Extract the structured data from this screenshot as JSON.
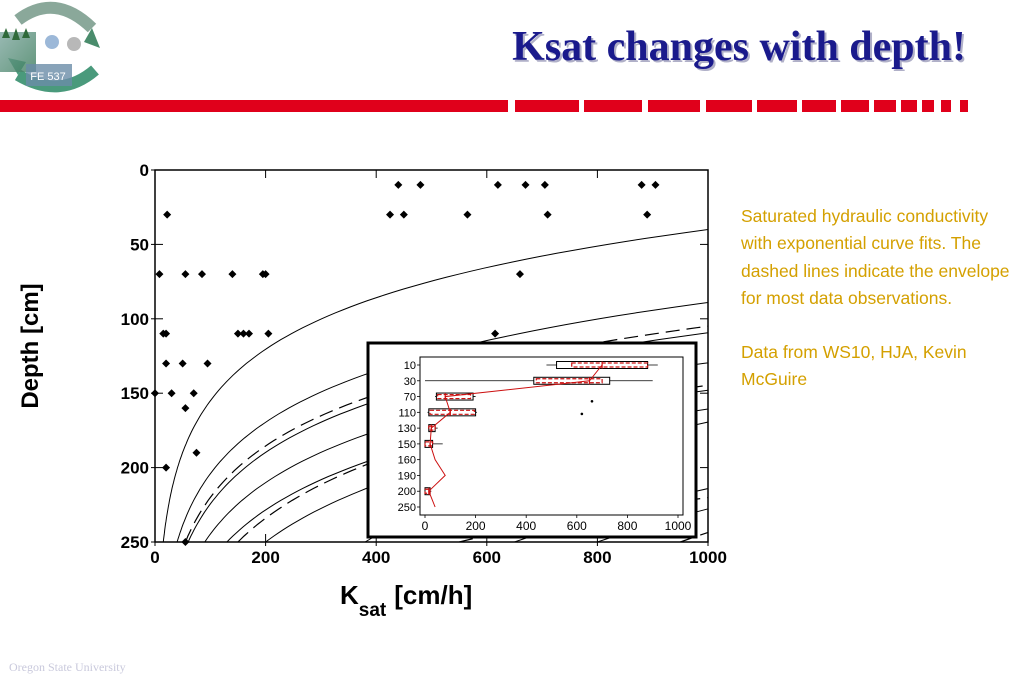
{
  "logo": {
    "icon": "ws-logo-icon",
    "badge_text": "FE 537"
  },
  "slide": {
    "title": "Ksat changes with depth!",
    "footer": "Oregon State University",
    "accent_title": "#1a1a8c",
    "accent_bar": "#e0001b",
    "accent_text": "#d4a000"
  },
  "description": {
    "paragraph1": "Saturated hydraulic conductivity with exponential curve fits.  The dashed lines indicate the envelope for most data observations.",
    "paragraph2": "Data from WS10, HJA, Kevin McGuire"
  },
  "chart_data": [
    {
      "type": "scatter",
      "xlabel_main": "K",
      "xlabel_sub": "sat",
      "xlabel_units": "[cm/h]",
      "ylabel": "Depth [cm]",
      "xlim": [
        0,
        1000
      ],
      "ylim": [
        250,
        0
      ],
      "x_ticks": [
        "0",
        "200",
        "400",
        "600",
        "800",
        "1000"
      ],
      "y_ticks": [
        "0",
        "50",
        "100",
        "150",
        "200",
        "250"
      ],
      "points": [
        [
          22,
          30
        ],
        [
          8,
          70
        ],
        [
          55,
          70
        ],
        [
          85,
          70
        ],
        [
          140,
          70
        ],
        [
          195,
          70
        ],
        [
          200,
          70
        ],
        [
          15,
          110
        ],
        [
          20,
          110
        ],
        [
          150,
          110
        ],
        [
          160,
          110
        ],
        [
          170,
          110
        ],
        [
          205,
          110
        ],
        [
          20,
          130
        ],
        [
          50,
          130
        ],
        [
          95,
          130
        ],
        [
          0,
          150
        ],
        [
          30,
          150
        ],
        [
          70,
          150
        ],
        [
          55,
          160
        ],
        [
          20,
          200
        ],
        [
          55,
          250
        ],
        [
          75,
          190
        ],
        [
          440,
          10
        ],
        [
          480,
          10
        ],
        [
          620,
          10
        ],
        [
          670,
          10
        ],
        [
          705,
          10
        ],
        [
          880,
          10
        ],
        [
          905,
          10
        ],
        [
          425,
          30
        ],
        [
          450,
          30
        ],
        [
          565,
          30
        ],
        [
          710,
          30
        ],
        [
          890,
          30
        ],
        [
          660,
          70
        ],
        [
          615,
          110
        ]
      ],
      "curves_solid": [
        {
          "a": 15,
          "b": 0.02
        },
        {
          "a": 40,
          "b": 0.02
        },
        {
          "a": 60,
          "b": 0.02
        },
        {
          "a": 90,
          "b": 0.02
        },
        {
          "a": 130,
          "b": 0.02
        },
        {
          "a": 200,
          "b": 0.018
        },
        {
          "a": 380,
          "b": 0.012
        },
        {
          "a": 650,
          "b": 0.012
        },
        {
          "a": 800,
          "b": 0.01
        },
        {
          "a": 1000,
          "b": 0.008
        }
      ],
      "curves_dashed": [
        {
          "a": 55,
          "b": 0.02
        },
        {
          "a": 150,
          "b": 0.018
        },
        {
          "a": 550,
          "b": 0.02
        },
        {
          "a": 950,
          "b": 0.008
        }
      ],
      "inset": {
        "type": "box",
        "categories": [
          "10",
          "30",
          "70",
          "110",
          "130",
          "150",
          "160",
          "190",
          "200",
          "250"
        ],
        "x_ticks": [
          "0",
          "200",
          "400",
          "600",
          "800",
          "1000"
        ],
        "xlim": [
          0,
          1000
        ],
        "boxes": [
          {
            "depth": "10",
            "q1": 520,
            "q3": 880,
            "wlo": 480,
            "whi": 920,
            "median": 700,
            "red_from": 580,
            "red_to": 880
          },
          {
            "depth": "30",
            "q1": 430,
            "q3": 730,
            "wlo": 0,
            "whi": 900,
            "median": 650,
            "red_from": 440,
            "red_to": 700
          },
          {
            "depth": "70",
            "q1": 45,
            "q3": 190,
            "wlo": 40,
            "whi": 200,
            "median": 80,
            "red_from": 50,
            "red_to": 180
          },
          {
            "depth": "110",
            "q1": 15,
            "q3": 200,
            "wlo": 10,
            "whi": 205,
            "median": 100,
            "red_from": 20,
            "red_to": 195
          },
          {
            "depth": "130",
            "q1": 15,
            "q3": 40,
            "wlo": 12,
            "whi": 50,
            "median": 25,
            "red_from": 15,
            "red_to": 40
          },
          {
            "depth": "150",
            "q1": 0,
            "q3": 30,
            "wlo": 0,
            "whi": 70,
            "median": 20,
            "red_from": 0,
            "red_to": 30
          },
          {
            "depth": "200",
            "q1": 0,
            "q3": 20,
            "wlo": 0,
            "whi": 25,
            "median": 15,
            "red_from": 0,
            "red_to": 20
          }
        ],
        "median_line": [
          [
            700,
            0
          ],
          [
            650,
            1
          ],
          [
            80,
            2
          ],
          [
            100,
            3
          ],
          [
            25,
            4
          ],
          [
            20,
            5
          ],
          [
            40,
            6
          ],
          [
            80,
            7
          ],
          [
            15,
            8
          ],
          [
            40,
            9
          ]
        ],
        "outliers": [
          [
            660,
            2.3
          ],
          [
            620,
            3.1
          ]
        ]
      }
    }
  ]
}
